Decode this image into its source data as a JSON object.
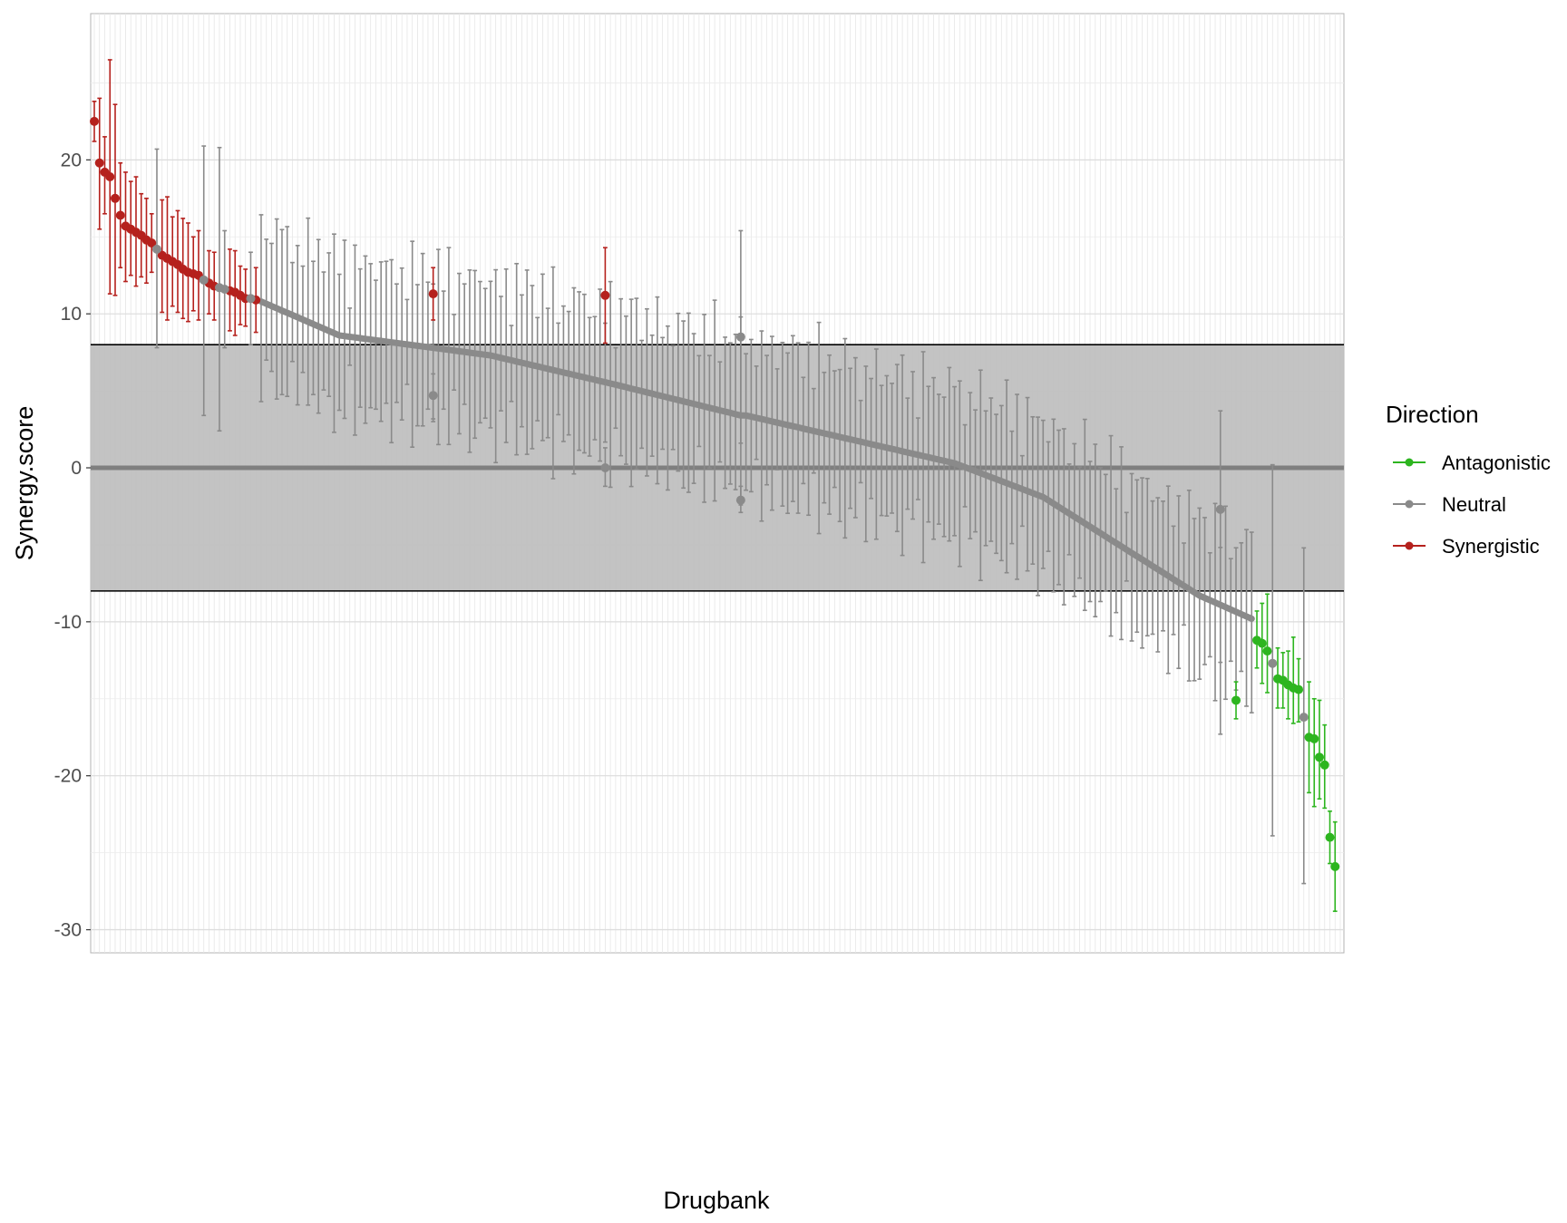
{
  "chart_data": {
    "type": "scatter",
    "title": "",
    "xlabel": "Drugbank",
    "ylabel": "Synergy.score",
    "ylim": [
      -31.5,
      29.5
    ],
    "grid": true,
    "y_ticks": [
      -30,
      -20,
      -10,
      0,
      10,
      20
    ],
    "y_tick_labels": [
      "-30",
      "-20",
      "-10",
      "0",
      "10",
      "20"
    ],
    "categories": [],
    "category_count": 240,
    "neutral_band": [
      -8,
      8
    ],
    "zero_line": 0,
    "legend": {
      "title": "Direction",
      "placement": "right",
      "entries": [
        "Antagonistic",
        "Neutral",
        "Synergistic"
      ]
    },
    "colors": {
      "Antagonistic": "#2db51f",
      "Neutral": "#8a8a8a",
      "Synergistic": "#b5211d",
      "band": "#bebebe",
      "grid": "#e6e6e6"
    },
    "series": [
      {
        "name": "Synergistic",
        "points": [
          {
            "x": 0,
            "y": 22.5,
            "lo": 21.2,
            "hi": 23.8
          },
          {
            "x": 1,
            "y": 19.8,
            "lo": 15.5,
            "hi": 24.0
          },
          {
            "x": 2,
            "y": 19.2,
            "lo": 16.5,
            "hi": 21.5
          },
          {
            "x": 3,
            "y": 18.9,
            "lo": 11.3,
            "hi": 26.5
          },
          {
            "x": 4,
            "y": 17.5,
            "lo": 11.2,
            "hi": 23.6
          },
          {
            "x": 5,
            "y": 16.4,
            "lo": 13.0,
            "hi": 19.8
          },
          {
            "x": 6,
            "y": 15.7,
            "lo": 12.1,
            "hi": 19.2
          },
          {
            "x": 7,
            "y": 15.5,
            "lo": 12.5,
            "hi": 18.6
          },
          {
            "x": 8,
            "y": 15.3,
            "lo": 11.8,
            "hi": 18.9
          },
          {
            "x": 9,
            "y": 15.1,
            "lo": 12.4,
            "hi": 17.8
          },
          {
            "x": 10,
            "y": 14.8,
            "lo": 12.0,
            "hi": 17.5
          },
          {
            "x": 11,
            "y": 14.6,
            "lo": 12.7,
            "hi": 16.5
          },
          {
            "x": 13,
            "y": 13.8,
            "lo": 10.1,
            "hi": 17.4
          },
          {
            "x": 14,
            "y": 13.6,
            "lo": 9.6,
            "hi": 17.6
          },
          {
            "x": 15,
            "y": 13.4,
            "lo": 10.5,
            "hi": 16.3
          },
          {
            "x": 16,
            "y": 13.2,
            "lo": 10.1,
            "hi": 16.7
          },
          {
            "x": 17,
            "y": 12.9,
            "lo": 9.7,
            "hi": 16.2
          },
          {
            "x": 18,
            "y": 12.7,
            "lo": 9.5,
            "hi": 15.9
          },
          {
            "x": 19,
            "y": 12.6,
            "lo": 10.2,
            "hi": 15.0
          },
          {
            "x": 20,
            "y": 12.5,
            "lo": 9.6,
            "hi": 15.4
          },
          {
            "x": 22,
            "y": 12.0,
            "lo": 10.0,
            "hi": 14.1
          },
          {
            "x": 23,
            "y": 11.8,
            "lo": 9.6,
            "hi": 14.0
          },
          {
            "x": 26,
            "y": 11.5,
            "lo": 8.9,
            "hi": 14.2
          },
          {
            "x": 27,
            "y": 11.4,
            "lo": 8.6,
            "hi": 14.1
          },
          {
            "x": 28,
            "y": 11.2,
            "lo": 9.3,
            "hi": 13.1
          },
          {
            "x": 29,
            "y": 11.0,
            "lo": 9.2,
            "hi": 12.9
          },
          {
            "x": 31,
            "y": 10.9,
            "lo": 8.8,
            "hi": 13.0
          },
          {
            "x": 65,
            "y": 11.3,
            "lo": 9.6,
            "hi": 13.0
          },
          {
            "x": 98,
            "y": 11.2,
            "lo": 8.1,
            "hi": 14.3
          }
        ]
      },
      {
        "name": "Antagonistic",
        "points": [
          {
            "x": 219,
            "y": -15.1,
            "lo": -16.3,
            "hi": -13.9
          },
          {
            "x": 223,
            "y": -11.2,
            "lo": -13.0,
            "hi": -9.3
          },
          {
            "x": 224,
            "y": -11.4,
            "lo": -14.0,
            "hi": -8.8
          },
          {
            "x": 225,
            "y": -11.9,
            "lo": -14.6,
            "hi": -8.2
          },
          {
            "x": 227,
            "y": -13.7,
            "lo": -15.6,
            "hi": -11.7
          },
          {
            "x": 228,
            "y": -13.8,
            "lo": -15.6,
            "hi": -12.0
          },
          {
            "x": 229,
            "y": -14.1,
            "lo": -16.3,
            "hi": -11.9
          },
          {
            "x": 230,
            "y": -14.3,
            "lo": -16.6,
            "hi": -11.0
          },
          {
            "x": 231,
            "y": -14.4,
            "lo": -16.5,
            "hi": -12.4
          },
          {
            "x": 233,
            "y": -17.5,
            "lo": -21.1,
            "hi": -13.9
          },
          {
            "x": 234,
            "y": -17.6,
            "lo": -22.0,
            "hi": -15.0
          },
          {
            "x": 235,
            "y": -18.8,
            "lo": -21.5,
            "hi": -15.1
          },
          {
            "x": 236,
            "y": -19.3,
            "lo": -22.1,
            "hi": -16.7
          },
          {
            "x": 237,
            "y": -24.0,
            "lo": -25.7,
            "hi": -22.3
          },
          {
            "x": 238,
            "y": -25.9,
            "lo": -28.8,
            "hi": -23.0
          }
        ]
      },
      {
        "name": "Neutral",
        "points": [
          {
            "x": 12,
            "y": 14.2,
            "lo": 7.8,
            "hi": 20.7
          },
          {
            "x": 21,
            "y": 12.2,
            "lo": 3.4,
            "hi": 20.9
          },
          {
            "x": 24,
            "y": 11.7,
            "lo": 2.4,
            "hi": 20.8
          },
          {
            "x": 25,
            "y": 11.6,
            "lo": 7.8,
            "hi": 15.4
          },
          {
            "x": 30,
            "y": 11.0,
            "lo": 8.0,
            "hi": 14.0
          },
          {
            "x": 65,
            "y": 4.7,
            "lo": 3.0,
            "hi": 6.1
          },
          {
            "x": 98,
            "y": 0.0,
            "lo": -1.2,
            "hi": 1.3
          },
          {
            "x": 124,
            "y": 8.5,
            "lo": 1.6,
            "hi": 15.4
          },
          {
            "x": 124,
            "y": -2.1,
            "lo": -2.9,
            "hi": -1.2
          },
          {
            "x": 216,
            "y": -2.7,
            "lo": -17.3,
            "hi": 3.7
          },
          {
            "x": 226,
            "y": -12.7,
            "lo": -23.9,
            "hi": 0.2
          },
          {
            "x": 232,
            "y": -16.2,
            "lo": -27.0,
            "hi": -5.2
          }
        ]
      }
    ]
  }
}
